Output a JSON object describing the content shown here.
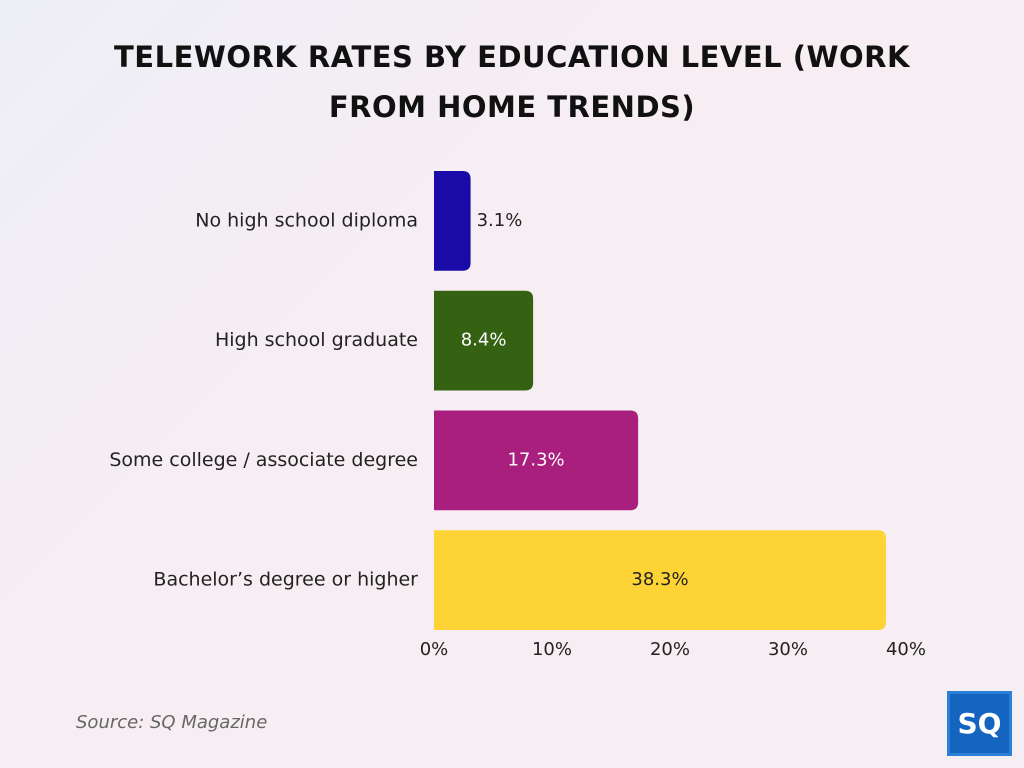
{
  "chart_data": {
    "type": "bar",
    "orientation": "horizontal",
    "title": "TELEWORK RATES BY EDUCATION LEVEL (WORK FROM HOME TRENDS)",
    "categories": [
      "No high school diploma",
      "High school graduate",
      "Some college / associate degree",
      "Bachelor’s degree or higher"
    ],
    "values": [
      3.1,
      8.4,
      17.3,
      38.3
    ],
    "value_labels": [
      "3.1%",
      "8.4%",
      "17.3%",
      "38.3%"
    ],
    "colors": [
      "#1a0aa8",
      "#356212",
      "#a91f7e",
      "#fdd335"
    ],
    "xlim": [
      0,
      40
    ],
    "xticks": [
      {
        "value": 0,
        "label": "0%"
      },
      {
        "value": 10,
        "label": "10%"
      },
      {
        "value": 20,
        "label": "20%"
      },
      {
        "value": 30,
        "label": "30%"
      },
      {
        "value": 40,
        "label": "40%"
      }
    ],
    "source": "Source: SQ Magazine",
    "logo": "SQ"
  }
}
